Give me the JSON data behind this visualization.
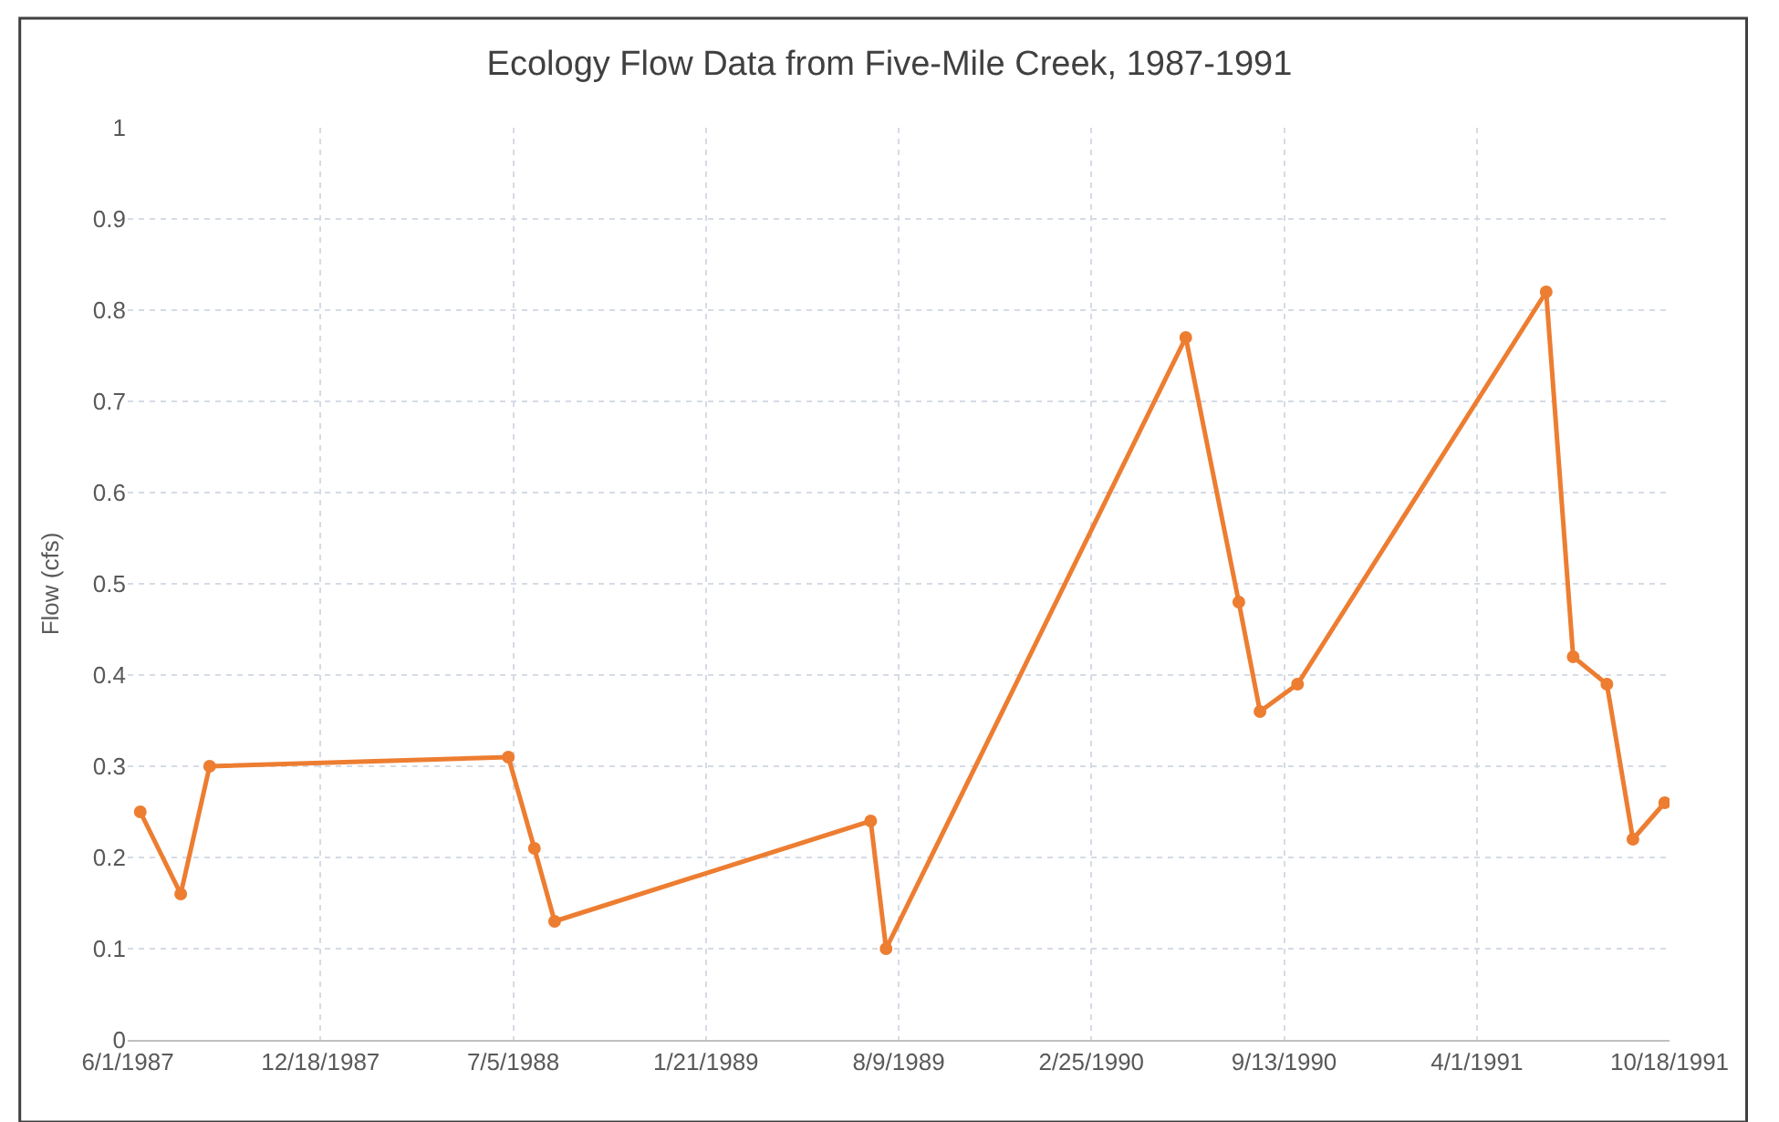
{
  "chart_data": {
    "type": "line",
    "title": "Ecology Flow Data from Five-Mile Creek, 1987-1991",
    "ylabel": "Flow (cfs)",
    "x": [
      "1987-06-14",
      "1987-07-26",
      "1987-08-25",
      "1988-06-30",
      "1988-07-27",
      "1988-08-17",
      "1989-07-11",
      "1989-07-27",
      "1990-06-03",
      "1990-07-28",
      "1990-08-19",
      "1990-09-27",
      "1991-06-12",
      "1991-07-10",
      "1991-08-14",
      "1991-09-10",
      "1991-10-13"
    ],
    "series": [
      {
        "color": "#ed7d31",
        "values": [
          0.25,
          0.16,
          0.3,
          0.31,
          0.21,
          0.13,
          0.24,
          0.1,
          0.77,
          0.48,
          0.36,
          0.39,
          0.82,
          0.42,
          0.39,
          0.22,
          0.26
        ]
      }
    ],
    "xlim": [
      "1987-06-01",
      "1991-10-18"
    ],
    "xticks": [
      {
        "value": "1987-06-01",
        "label": "6/1/1987"
      },
      {
        "value": "1987-12-18",
        "label": "12/18/1987"
      },
      {
        "value": "1988-07-05",
        "label": "7/5/1988"
      },
      {
        "value": "1989-01-21",
        "label": "1/21/1989"
      },
      {
        "value": "1989-08-09",
        "label": "8/9/1989"
      },
      {
        "value": "1990-02-25",
        "label": "2/25/1990"
      },
      {
        "value": "1990-09-13",
        "label": "9/13/1990"
      },
      {
        "value": "1991-04-01",
        "label": "4/1/1991"
      },
      {
        "value": "1991-10-18",
        "label": "10/18/1991"
      }
    ],
    "ylim": [
      0,
      1
    ],
    "yticks": [
      0,
      0.1,
      0.2,
      0.3,
      0.4,
      0.5,
      0.6,
      0.7,
      0.8,
      0.9,
      1
    ],
    "grid": true,
    "marker": "circle",
    "line_style": "solid"
  }
}
